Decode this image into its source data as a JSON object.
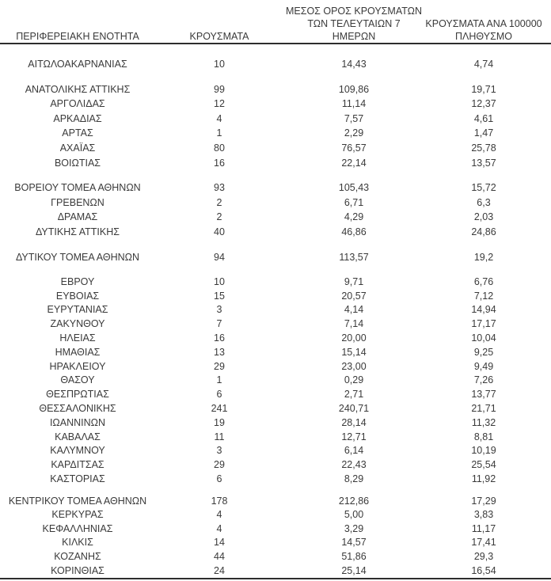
{
  "table": {
    "headers": {
      "region": "ΠΕΡΙΦΕΡΕΙΑΚΗ ΕΝΟΤΗΤΑ",
      "cases": "ΚΡΟΥΣΜΑΤΑ",
      "avg7_lines": [
        "ΜΕΣΟΣ ΟΡΟΣ ΚΡΟΥΣΜΑΤΩΝ",
        "ΤΩΝ ΤΕΛΕΥΤΑΙΩΝ 7",
        "ΗΜΕΡΩΝ"
      ],
      "per100k_lines": [
        "ΚΡΟΥΣΜΑΤΑ ΑΝΑ 100000",
        "ΠΛΗΘΥΣΜΟ"
      ]
    },
    "colors": {
      "text": "#3a3a3a",
      "rule": "#2d2d2d",
      "background": "#ffffff"
    },
    "groups": [
      {
        "rows": [
          {
            "region": "ΑΙΤΩΛΟΑΚΑΡΝΑΝΙΑΣ",
            "cases": "10",
            "avg7": "14,43",
            "per100k": "4,74"
          }
        ]
      },
      {
        "rows": [
          {
            "region": "ΑΝΑΤΟΛΙΚΗΣ ΑΤΤΙΚΗΣ",
            "cases": "99",
            "avg7": "109,86",
            "per100k": "19,71"
          },
          {
            "region": "ΑΡΓΟΛΙΔΑΣ",
            "cases": "12",
            "avg7": "11,14",
            "per100k": "12,37"
          },
          {
            "region": "ΑΡΚΑΔΙΑΣ",
            "cases": "4",
            "avg7": "7,57",
            "per100k": "4,61"
          },
          {
            "region": "ΑΡΤΑΣ",
            "cases": "1",
            "avg7": "2,29",
            "per100k": "1,47"
          },
          {
            "region": "ΑΧΑΪΑΣ",
            "cases": "80",
            "avg7": "76,57",
            "per100k": "25,78"
          },
          {
            "region": "ΒΟΙΩΤΙΑΣ",
            "cases": "16",
            "avg7": "22,14",
            "per100k": "13,57"
          }
        ]
      },
      {
        "rows": [
          {
            "region": "ΒΟΡΕΙΟΥ ΤΟΜΕΑ ΑΘΗΝΩΝ",
            "cases": "93",
            "avg7": "105,43",
            "per100k": "15,72"
          },
          {
            "region": "ΓΡΕΒΕΝΩΝ",
            "cases": "2",
            "avg7": "6,71",
            "per100k": "6,3"
          },
          {
            "region": "ΔΡΑΜΑΣ",
            "cases": "2",
            "avg7": "4,29",
            "per100k": "2,03"
          },
          {
            "region": "ΔΥΤΙΚΗΣ ΑΤΤΙΚΗΣ",
            "cases": "40",
            "avg7": "46,86",
            "per100k": "24,86"
          }
        ]
      },
      {
        "rows": [
          {
            "region": "ΔΥΤΙΚΟΥ ΤΟΜΕΑ ΑΘΗΝΩΝ",
            "cases": "94",
            "avg7": "113,57",
            "per100k": "19,2"
          }
        ]
      },
      {
        "rows": [
          {
            "region": "ΕΒΡΟΥ",
            "cases": "10",
            "avg7": "9,71",
            "per100k": "6,76"
          },
          {
            "region": "ΕΥΒΟΙΑΣ",
            "cases": "15",
            "avg7": "20,57",
            "per100k": "7,12"
          },
          {
            "region": "ΕΥΡΥΤΑΝΙΑΣ",
            "cases": "3",
            "avg7": "4,14",
            "per100k": "14,94"
          },
          {
            "region": "ΖΑΚΥΝΘΟΥ",
            "cases": "7",
            "avg7": "7,14",
            "per100k": "17,17"
          },
          {
            "region": "ΗΛΕΙΑΣ",
            "cases": "16",
            "avg7": "20,00",
            "per100k": "10,04"
          },
          {
            "region": "ΗΜΑΘΙΑΣ",
            "cases": "13",
            "avg7": "15,14",
            "per100k": "9,25"
          },
          {
            "region": "ΗΡΑΚΛΕΙΟΥ",
            "cases": "29",
            "avg7": "23,00",
            "per100k": "9,49"
          },
          {
            "region": "ΘΑΣΟΥ",
            "cases": "1",
            "avg7": "0,29",
            "per100k": "7,26"
          },
          {
            "region": "ΘΕΣΠΡΩΤΙΑΣ",
            "cases": "6",
            "avg7": "2,71",
            "per100k": "13,77"
          },
          {
            "region": "ΘΕΣΣΑΛΟΝΙΚΗΣ",
            "cases": "241",
            "avg7": "240,71",
            "per100k": "21,71"
          },
          {
            "region": "ΙΩΑΝΝΙΝΩΝ",
            "cases": "19",
            "avg7": "28,14",
            "per100k": "11,32"
          },
          {
            "region": "ΚΑΒΑΛΑΣ",
            "cases": "11",
            "avg7": "12,71",
            "per100k": "8,81"
          },
          {
            "region": "ΚΑΛΥΜΝΟΥ",
            "cases": "3",
            "avg7": "6,14",
            "per100k": "10,19"
          },
          {
            "region": "ΚΑΡΔΙΤΣΑΣ",
            "cases": "29",
            "avg7": "22,43",
            "per100k": "25,54"
          },
          {
            "region": "ΚΑΣΤΟΡΙΑΣ",
            "cases": "6",
            "avg7": "8,29",
            "per100k": "11,92"
          }
        ]
      },
      {
        "rows": [
          {
            "region": "ΚΕΝΤΡΙΚΟΥ ΤΟΜΕΑ ΑΘΗΝΩΝ",
            "cases": "178",
            "avg7": "212,86",
            "per100k": "17,29"
          },
          {
            "region": "ΚΕΡΚΥΡΑΣ",
            "cases": "4",
            "avg7": "5,00",
            "per100k": "3,83"
          },
          {
            "region": "ΚΕΦΑΛΛΗΝΙΑΣ",
            "cases": "4",
            "avg7": "3,29",
            "per100k": "11,17"
          },
          {
            "region": "ΚΙΛΚΙΣ",
            "cases": "14",
            "avg7": "14,57",
            "per100k": "17,41"
          },
          {
            "region": "ΚΟΖΑΝΗΣ",
            "cases": "44",
            "avg7": "51,86",
            "per100k": "29,3"
          },
          {
            "region": "ΚΟΡΙΝΘΙΑΣ",
            "cases": "24",
            "avg7": "25,14",
            "per100k": "16,54"
          }
        ]
      }
    ]
  }
}
